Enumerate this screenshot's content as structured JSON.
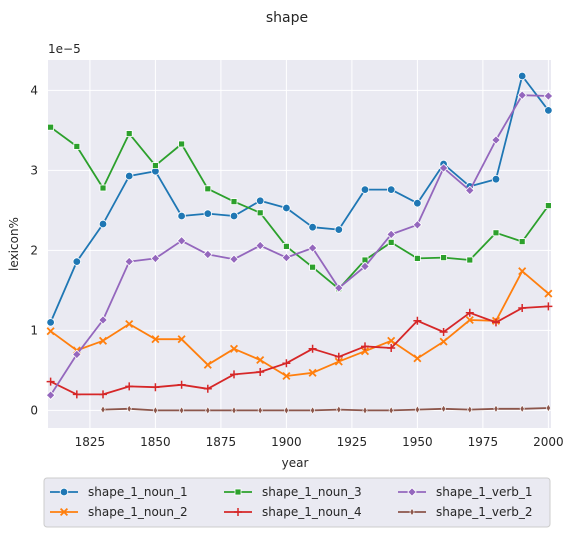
{
  "chart_data": {
    "type": "line",
    "title": "shape",
    "xlabel": "year",
    "ylabel": "lexicon%",
    "y_offset_label": "1e−5",
    "xlim": [
      1809,
      2001
    ],
    "ylim": [
      -0.22,
      4.38
    ],
    "x_ticks": [
      1825,
      1850,
      1875,
      1900,
      1925,
      1950,
      1975,
      2000
    ],
    "y_ticks": [
      0,
      1,
      2,
      3,
      4
    ],
    "grid": true,
    "background": "#eaeaf2",
    "legend_position": "bottom",
    "series": [
      {
        "name": "shape_1_noun_1",
        "color": "#1f77b4",
        "marker": "circle",
        "x": [
          1810,
          1820,
          1830,
          1840,
          1850,
          1860,
          1870,
          1880,
          1890,
          1900,
          1910,
          1920,
          1930,
          1940,
          1950,
          1960,
          1970,
          1980,
          1990,
          2000
        ],
        "y": [
          1.1,
          1.86,
          2.33,
          2.93,
          2.99,
          2.43,
          2.46,
          2.43,
          2.62,
          2.53,
          2.29,
          2.26,
          2.76,
          2.76,
          2.59,
          3.08,
          2.8,
          2.89,
          4.18,
          3.75
        ]
      },
      {
        "name": "shape_1_noun_2",
        "color": "#ff7f0e",
        "marker": "x",
        "x": [
          1810,
          1820,
          1830,
          1840,
          1850,
          1860,
          1870,
          1880,
          1890,
          1900,
          1910,
          1920,
          1930,
          1940,
          1950,
          1960,
          1970,
          1980,
          1990,
          2000
        ],
        "y": [
          0.99,
          0.75,
          0.87,
          1.08,
          0.89,
          0.89,
          0.57,
          0.77,
          0.63,
          0.43,
          0.47,
          0.61,
          0.74,
          0.87,
          0.65,
          0.86,
          1.13,
          1.12,
          1.74,
          1.46
        ]
      },
      {
        "name": "shape_1_noun_3",
        "color": "#2ca02c",
        "marker": "square",
        "x": [
          1810,
          1820,
          1830,
          1840,
          1850,
          1860,
          1870,
          1880,
          1890,
          1900,
          1910,
          1920,
          1930,
          1940,
          1950,
          1960,
          1970,
          1980,
          1990,
          2000
        ],
        "y": [
          3.54,
          3.3,
          2.78,
          3.46,
          3.06,
          3.33,
          2.77,
          2.61,
          2.47,
          2.05,
          1.79,
          1.52,
          1.88,
          2.1,
          1.9,
          1.91,
          1.88,
          2.22,
          2.11,
          2.56
        ]
      },
      {
        "name": "shape_1_noun_4",
        "color": "#d62728",
        "marker": "plus",
        "x": [
          1810,
          1820,
          1830,
          1840,
          1850,
          1860,
          1870,
          1880,
          1890,
          1900,
          1910,
          1920,
          1930,
          1940,
          1950,
          1960,
          1970,
          1980,
          1990,
          2000
        ],
        "y": [
          0.36,
          0.2,
          0.2,
          0.3,
          0.29,
          0.32,
          0.27,
          0.45,
          0.48,
          0.59,
          0.77,
          0.67,
          0.8,
          0.78,
          1.12,
          0.98,
          1.22,
          1.1,
          1.28,
          1.3
        ]
      },
      {
        "name": "shape_1_verb_1",
        "color": "#9467bd",
        "marker": "diamond",
        "x": [
          1810,
          1820,
          1830,
          1840,
          1850,
          1860,
          1870,
          1880,
          1890,
          1900,
          1910,
          1920,
          1930,
          1940,
          1950,
          1960,
          1970,
          1980,
          1990,
          2000
        ],
        "y": [
          0.19,
          0.7,
          1.13,
          1.86,
          1.9,
          2.12,
          1.95,
          1.89,
          2.06,
          1.91,
          2.03,
          1.53,
          1.8,
          2.2,
          2.32,
          3.03,
          2.75,
          3.38,
          3.94,
          3.93
        ]
      },
      {
        "name": "shape_1_verb_2",
        "color": "#8c564b",
        "marker": "thin_diamond",
        "x": [
          1830,
          1840,
          1850,
          1860,
          1870,
          1880,
          1890,
          1900,
          1910,
          1920,
          1930,
          1940,
          1950,
          1960,
          1970,
          1980,
          1990,
          2000
        ],
        "y": [
          0.01,
          0.02,
          0.0,
          0.0,
          0.0,
          0.0,
          0.0,
          0.0,
          0.0,
          0.01,
          0.0,
          0.0,
          0.01,
          0.02,
          0.01,
          0.02,
          0.02,
          0.03
        ]
      }
    ]
  }
}
